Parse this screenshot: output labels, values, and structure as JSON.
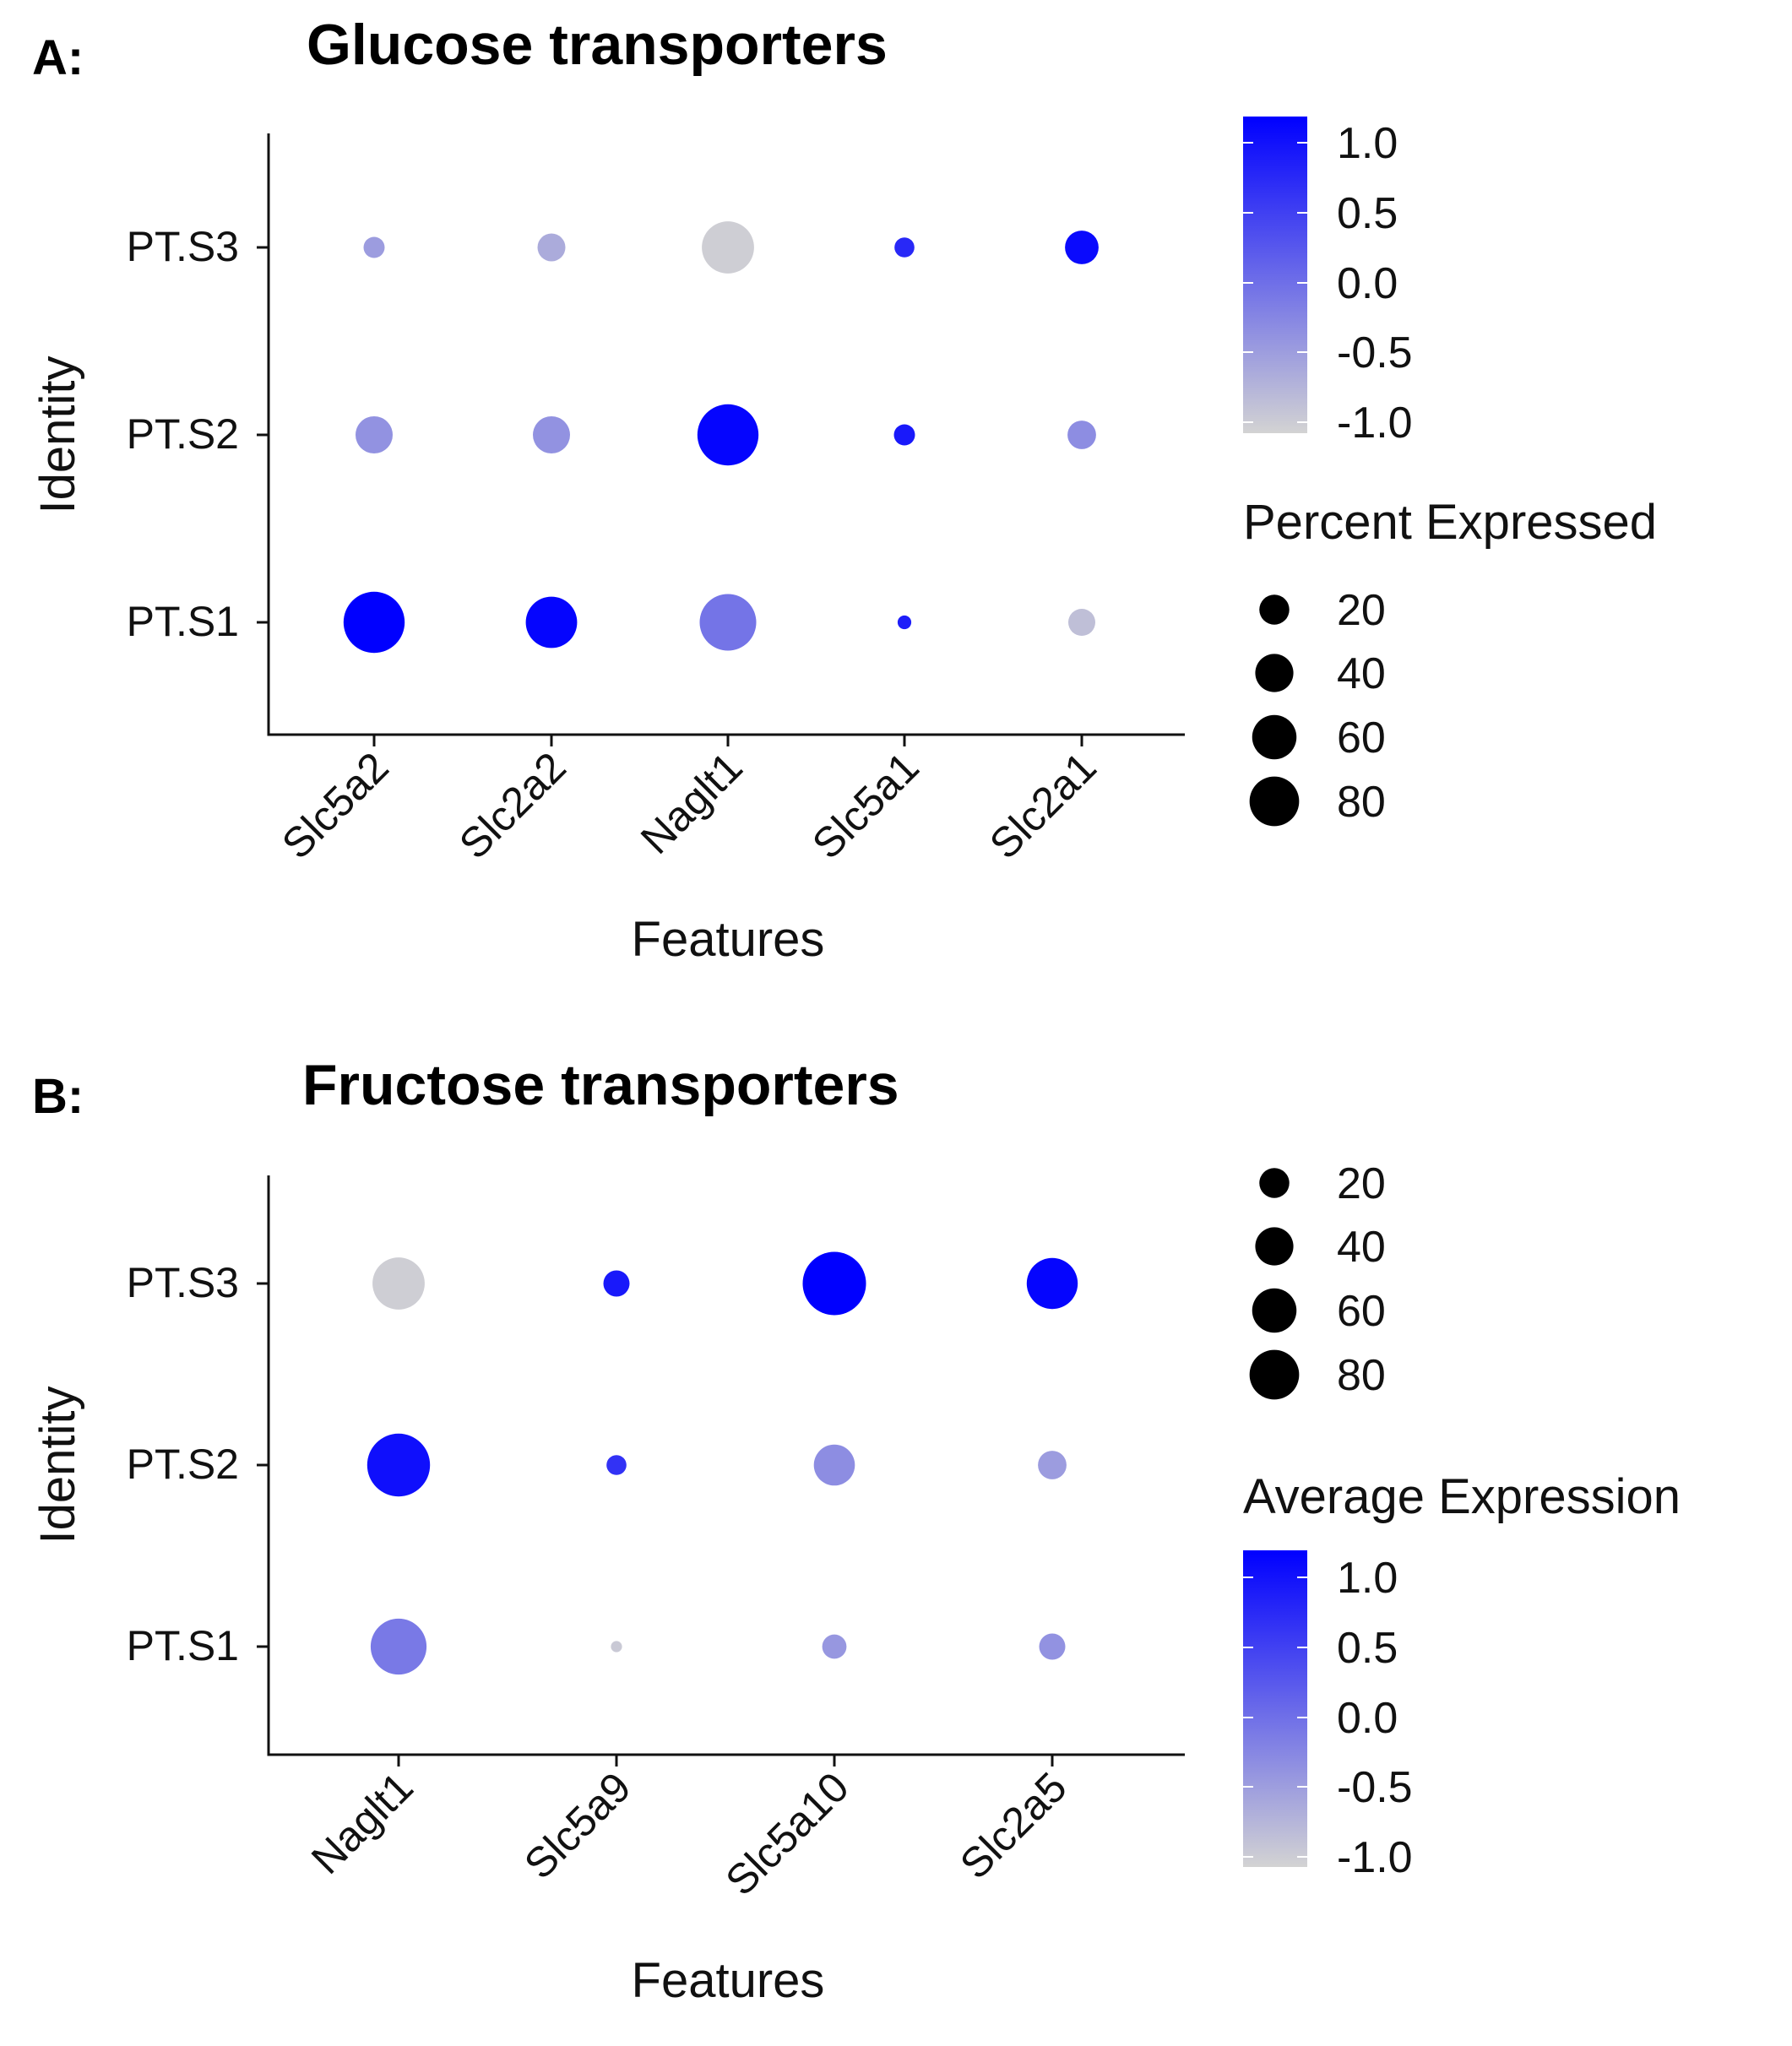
{
  "colors": {
    "low": "#d3d3d3",
    "high": "#0000ff"
  },
  "chart_data": [
    {
      "id": "A",
      "type": "dot",
      "panel_label": "A:",
      "title": "Glucose transporters",
      "xlabel": "Features",
      "ylabel": "Identity",
      "features": [
        "Slc5a2",
        "Slc2a2",
        "Naglt1",
        "Slc5a1",
        "Slc2a1"
      ],
      "identities": [
        "PT.S1",
        "PT.S2",
        "PT.S3"
      ],
      "avg_expression": [
        [
          1.1,
          1.05,
          -0.05,
          0.8,
          -0.8
        ],
        [
          -0.35,
          -0.35,
          1.05,
          0.85,
          -0.3
        ],
        [
          -0.45,
          -0.6,
          -0.95,
          0.7,
          1.0
        ]
      ],
      "pct_expressed": [
        [
          85,
          58,
          72,
          2,
          13
        ],
        [
          28,
          28,
          85,
          7,
          15
        ],
        [
          7,
          14,
          60,
          6,
          22
        ]
      ],
      "color_legend": {
        "title": "Average Expression",
        "title_shown": false,
        "ticks": [
          "1.0",
          "0.5",
          "0.0",
          "-0.5",
          "-1.0"
        ],
        "range": [
          -1.0,
          1.1
        ]
      },
      "size_legend": {
        "title": "Percent Expressed",
        "title_shown": true,
        "values": [
          20,
          40,
          60,
          80
        ]
      }
    },
    {
      "id": "B",
      "type": "dot",
      "panel_label": "B:",
      "title": "Fructose transporters",
      "xlabel": "Features",
      "ylabel": "Identity",
      "features": [
        "Naglt1",
        "Slc5a9",
        "Slc5a10",
        "Slc2a5"
      ],
      "identities": [
        "PT.S1",
        "PT.S2",
        "PT.S3"
      ],
      "avg_expression": [
        [
          -0.1,
          -0.9,
          -0.4,
          -0.35
        ],
        [
          0.95,
          0.6,
          -0.3,
          -0.45
        ],
        [
          -0.95,
          0.85,
          1.15,
          1.05
        ]
      ],
      "pct_expressed": [
        [
          70,
          1,
          10,
          12
        ],
        [
          90,
          6,
          35,
          15
        ],
        [
          60,
          12,
          92,
          57
        ]
      ],
      "color_legend": {
        "title": "Average Expression",
        "title_shown": true,
        "ticks": [
          "1.0",
          "0.5",
          "0.0",
          "-0.5",
          "-1.0"
        ],
        "range": [
          -1.0,
          1.1
        ]
      },
      "size_legend": {
        "title": "Percent Expressed",
        "title_shown": false,
        "values": [
          20,
          40,
          60,
          80
        ]
      }
    }
  ]
}
